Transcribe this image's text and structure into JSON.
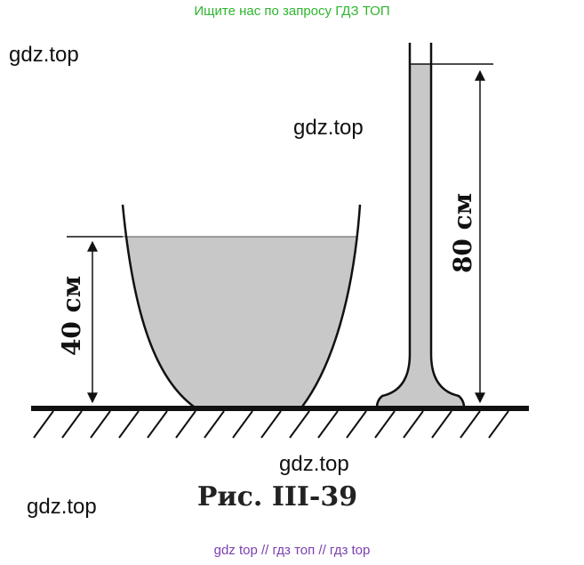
{
  "banner": {
    "text": "Ищите нас по запросу ГДЗ ТОП"
  },
  "watermarks": [
    "gdz.top",
    "gdz.top",
    "gdz.top",
    "gdz.top"
  ],
  "figure": {
    "label_left": "40 см",
    "label_right": "80 см",
    "caption": "Рис. III-39"
  },
  "footer": {
    "text": "gdz top  //  гдз топ  //  гдз top"
  },
  "colors": {
    "banner": "#2fb52f",
    "footer": "#7b3fb0",
    "liquid": "#c8c8c8",
    "ink": "#111111"
  }
}
